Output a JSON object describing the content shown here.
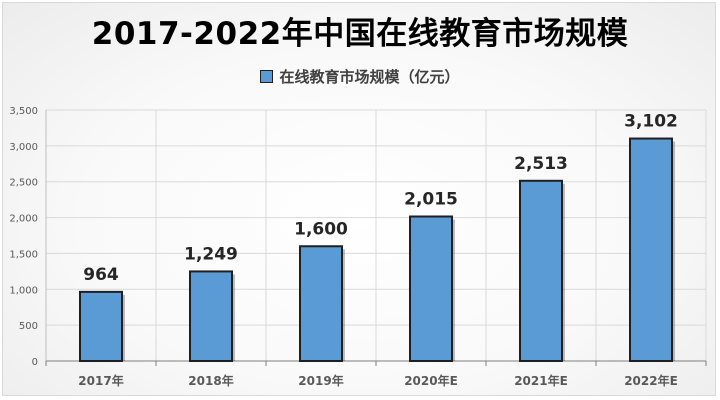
{
  "chart_data": {
    "type": "bar",
    "title": "2017-2022年中国在线教育市场规模",
    "categories": [
      "2017年",
      "2018年",
      "2019年",
      "2020年E",
      "2021年E",
      "2022年E"
    ],
    "series": [
      {
        "name": "在线教育市场规模（亿元）",
        "values": [
          964,
          1249,
          1600,
          2015,
          2513,
          3102
        ],
        "data_labels": [
          "964",
          "1,249",
          "1,600",
          "2,015",
          "2,513",
          "3,102"
        ]
      }
    ],
    "y_ticks": [
      "0",
      "500",
      "1,000",
      "1,500",
      "2,000",
      "2,500",
      "3,000",
      "3,500"
    ],
    "ylim": [
      0,
      3500
    ],
    "xlabel": "",
    "ylabel": "",
    "grid": true,
    "legend_position": "top-center",
    "colors": {
      "bar": "#5b9bd5",
      "bar_border": "#1f1f1f",
      "grid": "#d9d9d9",
      "axis_text": "#595959"
    }
  }
}
